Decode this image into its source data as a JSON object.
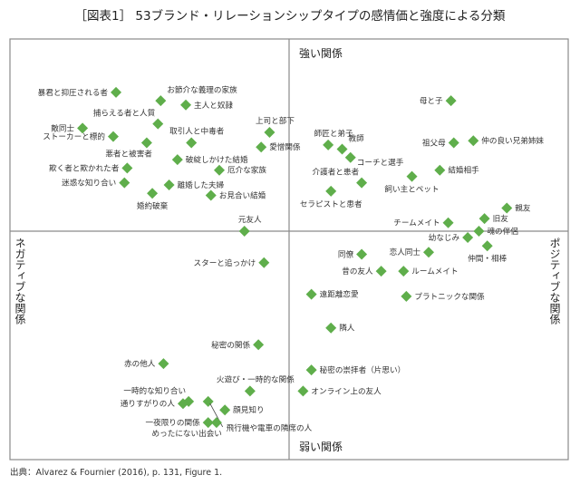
{
  "title": "［図表1］ 53ブランド・リレーションシップタイプの感情価と強度による分類",
  "source": "出典：Alvarez & Fournier (2016), p. 131, Figure 1.",
  "chart_data": {
    "type": "scatter",
    "x_axis": {
      "negative_label": "ネガティブな関係",
      "positive_label": "ポジティブな関係"
    },
    "y_axis": {
      "positive_label": "強い関係",
      "negative_label": "弱い関係"
    },
    "xlim": [
      -100,
      100
    ],
    "ylim": [
      -109,
      91
    ],
    "grid": false,
    "marker_color": "#5fae4b",
    "points": [
      {
        "label": "暴君と抑圧される者",
        "x": -62,
        "y": 66,
        "pos": "left"
      },
      {
        "label": "お節介な義理の家族",
        "x": -46,
        "y": 62,
        "pos": "above-right"
      },
      {
        "label": "主人と奴隷",
        "x": -37,
        "y": 60,
        "pos": "right"
      },
      {
        "label": "敵同士",
        "x": -74,
        "y": 49,
        "pos": "left"
      },
      {
        "label": "捕らえる者と人質",
        "x": -47,
        "y": 51,
        "pos": "above-left"
      },
      {
        "label": "ストーカーと標的",
        "x": -63,
        "y": 45,
        "pos": "left"
      },
      {
        "label": "悪者と被害者",
        "x": -51,
        "y": 42,
        "pos": "below-left"
      },
      {
        "label": "取引人と中毒者",
        "x": -35,
        "y": 42,
        "pos": "above"
      },
      {
        "label": "上司と部下",
        "x": -7,
        "y": 47,
        "pos": "above"
      },
      {
        "label": "愛憎関係",
        "x": -10,
        "y": 40,
        "pos": "right"
      },
      {
        "label": "破綻しかけた結婚",
        "x": -40,
        "y": 34,
        "pos": "right"
      },
      {
        "label": "欺く者と欺かれた者",
        "x": -58,
        "y": 30,
        "pos": "left"
      },
      {
        "label": "厄介な家族",
        "x": -25,
        "y": 29,
        "pos": "right"
      },
      {
        "label": "迷惑な知り合い",
        "x": -59,
        "y": 23,
        "pos": "left"
      },
      {
        "label": "離婚した夫婦",
        "x": -43,
        "y": 22,
        "pos": "right"
      },
      {
        "label": "婚約破棄",
        "x": -49,
        "y": 18,
        "pos": "below"
      },
      {
        "label": "お見合い結婚",
        "x": -28,
        "y": 17,
        "pos": "right"
      },
      {
        "label": "元友人",
        "x": -16,
        "y": 0,
        "pos": "above"
      },
      {
        "label": "母と子",
        "x": 58,
        "y": 62,
        "pos": "left"
      },
      {
        "label": "師匠と弟子",
        "x": 14,
        "y": 41,
        "pos": "above"
      },
      {
        "label": "教師",
        "x": 19,
        "y": 39,
        "pos": "above-right"
      },
      {
        "label": "コーチと選手",
        "x": 22,
        "y": 35,
        "pos": "below-right"
      },
      {
        "label": "祖父母",
        "x": 59,
        "y": 42,
        "pos": "left"
      },
      {
        "label": "仲の良い兄弟姉妹",
        "x": 66,
        "y": 43,
        "pos": "right"
      },
      {
        "label": "結婚相手",
        "x": 54,
        "y": 29,
        "pos": "right"
      },
      {
        "label": "飼い主とペット",
        "x": 44,
        "y": 26,
        "pos": "below"
      },
      {
        "label": "介護者と患者",
        "x": 26,
        "y": 23,
        "pos": "above-left"
      },
      {
        "label": "セラピストと患者",
        "x": 15,
        "y": 19,
        "pos": "below"
      },
      {
        "label": "親友",
        "x": 78,
        "y": 11,
        "pos": "right"
      },
      {
        "label": "チームメイト",
        "x": 57,
        "y": 4,
        "pos": "left"
      },
      {
        "label": "旧友",
        "x": 70,
        "y": 6,
        "pos": "right"
      },
      {
        "label": "幼なじみ",
        "x": 64,
        "y": -3,
        "pos": "left"
      },
      {
        "label": "魂の伴侶",
        "x": 68,
        "y": 0,
        "pos": "right"
      },
      {
        "label": "仲間・相棒",
        "x": 71,
        "y": -7,
        "pos": "below"
      },
      {
        "label": "同僚",
        "x": 26,
        "y": -11,
        "pos": "left"
      },
      {
        "label": "恋人同士",
        "x": 50,
        "y": -10,
        "pos": "left"
      },
      {
        "label": "昔の友人",
        "x": 33,
        "y": -19,
        "pos": "left"
      },
      {
        "label": "ルームメイト",
        "x": 41,
        "y": -19,
        "pos": "right"
      },
      {
        "label": "遠距離恋愛",
        "x": 8,
        "y": -30,
        "pos": "right"
      },
      {
        "label": "プラトニックな関係",
        "x": 42,
        "y": -31,
        "pos": "right"
      },
      {
        "label": "隣人",
        "x": 15,
        "y": -46,
        "pos": "right"
      },
      {
        "label": "秘密の崇拝者（片思い）",
        "x": 8,
        "y": -66,
        "pos": "right"
      },
      {
        "label": "オンライン上の友人",
        "x": 5,
        "y": -76,
        "pos": "right"
      },
      {
        "label": "スターと追っかけ",
        "x": -9,
        "y": -15,
        "pos": "left"
      },
      {
        "label": "秘密の関係",
        "x": -11,
        "y": -54,
        "pos": "left"
      },
      {
        "label": "赤の他人",
        "x": -45,
        "y": -63,
        "pos": "left"
      },
      {
        "label": "火遊び・一時的な関係",
        "x": -14,
        "y": -76,
        "pos": "above"
      },
      {
        "label": "一時的な知り合い",
        "x": -36,
        "y": -81,
        "pos": "above-left"
      },
      {
        "label": "通りすがりの人",
        "x": -38,
        "y": -82,
        "pos": "left"
      },
      {
        "label": "飛行機や電車の隣席の人",
        "x": -29,
        "y": -81,
        "pos": "leader"
      },
      {
        "label": "顔見知り",
        "x": -23,
        "y": -85,
        "pos": "right"
      },
      {
        "label": "一夜限りの関係",
        "x": -29,
        "y": -91,
        "pos": "left"
      },
      {
        "label": "めったにない出会い",
        "x": -26,
        "y": -91,
        "pos": "below-left"
      }
    ]
  }
}
